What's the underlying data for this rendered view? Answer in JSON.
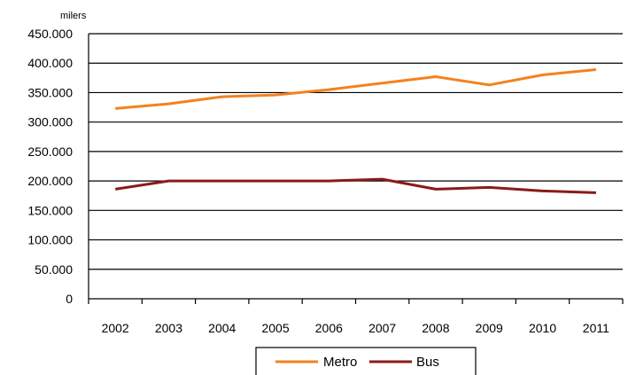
{
  "chart_data": {
    "type": "line",
    "unit_label": "milers",
    "categories": [
      "2002",
      "2003",
      "2004",
      "2005",
      "2006",
      "2007",
      "2008",
      "2009",
      "2010",
      "2011"
    ],
    "y_tick_labels": [
      "0",
      "50.000",
      "100.000",
      "150.000",
      "200.000",
      "250.000",
      "300.000",
      "350.000",
      "400.000",
      "450.000"
    ],
    "ylim": [
      0,
      450000
    ],
    "y_ticks": [
      0,
      50000,
      100000,
      150000,
      200000,
      250000,
      300000,
      350000,
      400000,
      450000
    ],
    "grid": true,
    "legend_position": "bottom",
    "series": [
      {
        "name": "Metro",
        "color": "#F4811F",
        "values": [
          323000,
          331000,
          343000,
          346000,
          355000,
          366000,
          377000,
          363000,
          380000,
          389000
        ]
      },
      {
        "name": "Bus",
        "color": "#8B1A1A",
        "values": [
          186000,
          200000,
          200000,
          200000,
          200000,
          203000,
          186000,
          189000,
          183000,
          180000
        ]
      }
    ]
  }
}
